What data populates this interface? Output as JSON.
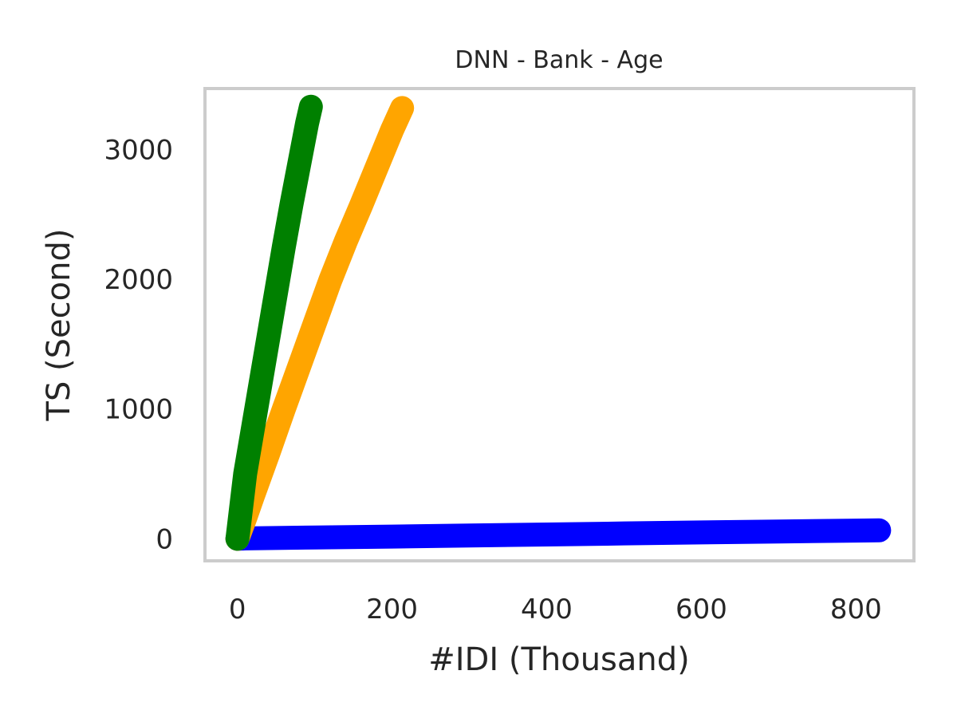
{
  "chart_data": {
    "type": "line",
    "title": "DNN - Bank - Age",
    "xlabel": "#IDI (Thousand)",
    "ylabel": "TS (Second)",
    "xlim": [
      -42,
      875
    ],
    "ylim": [
      -170,
      3470
    ],
    "xticks": [
      0,
      200,
      400,
      600,
      800
    ],
    "xtick_labels": [
      "0",
      "200",
      "400",
      "600",
      "800"
    ],
    "yticks": [
      0,
      1000,
      2000,
      3000
    ],
    "ytick_labels": [
      "0",
      "1000",
      "2000",
      "3000"
    ],
    "grid": false,
    "legend": "none",
    "series": [
      {
        "color": "#0000ff",
        "x": [
          0,
          10,
          100,
          200,
          300,
          400,
          500,
          600,
          700,
          800,
          830
        ],
        "y": [
          0,
          3,
          10,
          17,
          25,
          33,
          41,
          49,
          56,
          63,
          65
        ]
      },
      {
        "color": "#ffa500",
        "x": [
          0,
          10,
          20,
          40,
          60,
          80,
          100,
          120,
          140,
          160,
          180,
          200,
          213
        ],
        "y": [
          0,
          160,
          330,
          660,
          1000,
          1330,
          1660,
          1990,
          2290,
          2570,
          2860,
          3150,
          3320
        ]
      },
      {
        "color": "#008000",
        "x": [
          0,
          5,
          10,
          20,
          30,
          40,
          50,
          60,
          70,
          80,
          90,
          95
        ],
        "y": [
          0,
          250,
          500,
          850,
          1200,
          1550,
          1900,
          2250,
          2580,
          2890,
          3200,
          3330
        ]
      }
    ]
  }
}
